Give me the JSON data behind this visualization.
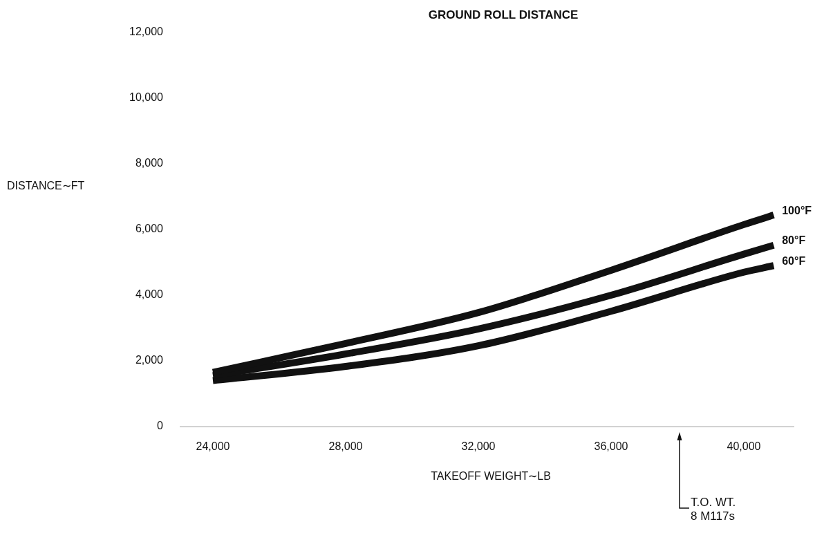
{
  "chart_data": {
    "type": "line",
    "title": "GROUND ROLL DISTANCE",
    "xlabel": "TAKEOFF WEIGHT∼LB",
    "ylabel": "DISTANCE∼FT",
    "x": [
      24000,
      28000,
      32000,
      36000,
      40000,
      40900
    ],
    "series": [
      {
        "name": "100°F",
        "color": "#111111",
        "values": [
          1650,
          2530,
          3470,
          4760,
          6150,
          6440
        ]
      },
      {
        "name": "80°F",
        "color": "#111111",
        "values": [
          1550,
          2210,
          2970,
          4000,
          5250,
          5520
        ]
      },
      {
        "name": "60°F",
        "color": "#111111",
        "values": [
          1400,
          1830,
          2460,
          3510,
          4700,
          4900
        ]
      }
    ],
    "xlim": [
      23000,
      41500
    ],
    "xticks": [
      {
        "value": 24000,
        "label": "24,000"
      },
      {
        "value": 28000,
        "label": "28,000"
      },
      {
        "value": 32000,
        "label": "32,000"
      },
      {
        "value": 36000,
        "label": "36,000"
      },
      {
        "value": 40000,
        "label": "40,000"
      }
    ],
    "ylim": [
      0,
      12000
    ],
    "yticks": [
      {
        "value": 0,
        "label": "0"
      },
      {
        "value": 2000,
        "label": "2,000"
      },
      {
        "value": 4000,
        "label": "4,000"
      },
      {
        "value": 6000,
        "label": "6,000"
      },
      {
        "value": 8000,
        "label": "8,000"
      },
      {
        "value": 10000,
        "label": "10,000"
      },
      {
        "value": 12000,
        "label": "12,000"
      }
    ],
    "annotations": [
      "T.O. WT.\n8 M117s"
    ],
    "marker": "none",
    "line_style": "solid"
  }
}
